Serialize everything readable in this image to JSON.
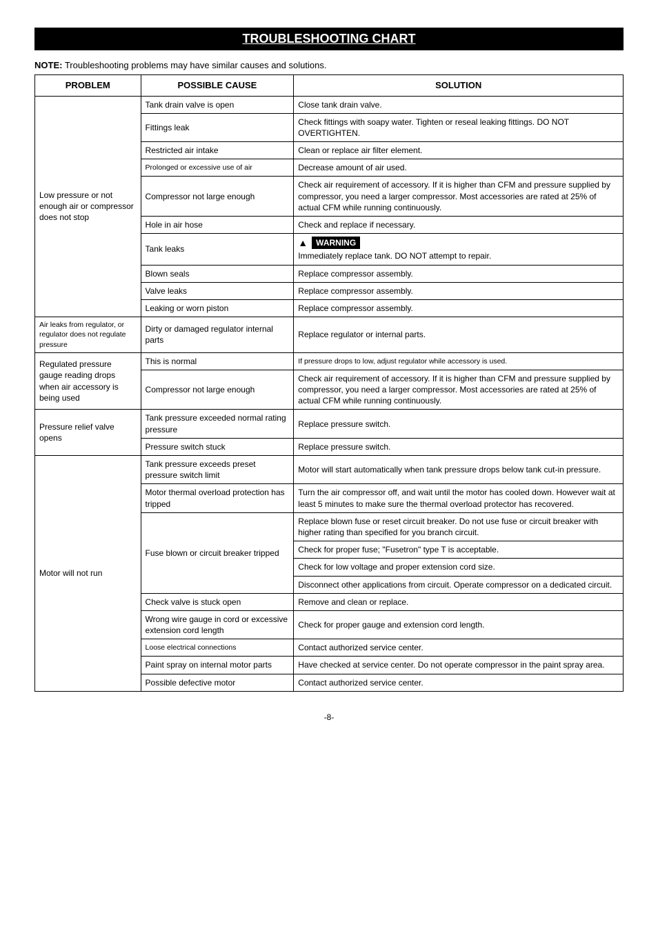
{
  "title": "TROUBLESHOOTING CHART",
  "note_label": "NOTE:",
  "note_text": " Troubleshooting problems may have similar causes and solutions.",
  "headers": {
    "problem": "PROBLEM",
    "cause": "POSSIBLE CAUSE",
    "solution": "SOLUTION"
  },
  "warning_label": "WARNING",
  "page_number": "-8-",
  "groups": [
    {
      "problem": "Low pressure or not enough air or compressor does not stop",
      "rows": [
        {
          "cause": "Tank drain valve is open",
          "solution": "Close tank drain valve."
        },
        {
          "cause": "Fittings leak",
          "solution": "Check fittings with soapy water. Tighten or reseal leaking fittings. DO NOT OVERTIGHTEN."
        },
        {
          "cause": "Restricted air intake",
          "solution": "Clean or replace air filter element."
        },
        {
          "cause": "Prolonged or excessive use of air",
          "solution": "Decrease amount of air used.",
          "cause_small": true
        },
        {
          "cause": "Compressor not large enough",
          "solution": "Check air requirement of accessory. If it is higher than CFM and pressure supplied by compressor, you need a larger compressor. Most accessories are rated at 25% of actual CFM while running continuously."
        },
        {
          "cause": "Hole in air hose",
          "solution": "Check and replace if necessary."
        },
        {
          "cause": "Tank leaks",
          "solution": "Immediately replace tank. DO NOT attempt to repair.",
          "warning": true
        },
        {
          "cause": "Blown seals",
          "solution": "Replace compressor assembly."
        },
        {
          "cause": "Valve leaks",
          "solution": "Replace compressor assembly."
        },
        {
          "cause": "Leaking or worn piston",
          "solution": "Replace compressor assembly."
        }
      ]
    },
    {
      "problem": "Air leaks from regulator, or regulator does not regulate pressure",
      "problem_small": true,
      "rows": [
        {
          "cause": "Dirty or damaged regulator internal parts",
          "solution": "Replace regulator or internal parts."
        }
      ]
    },
    {
      "problem": "Regulated pressure gauge reading drops when air accessory is being used",
      "rows": [
        {
          "cause": "This is normal",
          "solution": "If pressure drops to low, adjust regulator while accessory is used.",
          "sol_small": true
        },
        {
          "cause": "Compressor not large enough",
          "solution": "Check air requirement of accessory. If it is higher than CFM and pressure supplied by compressor, you need a larger compressor. Most accessories are rated at 25% of actual CFM while running continuously."
        }
      ]
    },
    {
      "problem": "Pressure relief valve opens",
      "rows": [
        {
          "cause": "Tank pressure exceeded normal rating pressure",
          "solution": "Replace pressure switch."
        },
        {
          "cause": "Pressure switch stuck",
          "solution": "Replace pressure switch."
        }
      ]
    },
    {
      "problem": "Motor will not run",
      "rows": [
        {
          "cause": "Tank pressure exceeds preset pressure switch limit",
          "solution": "Motor will start automatically when tank pressure drops below tank cut-in pressure."
        },
        {
          "cause": "Motor thermal overload protection has tripped",
          "solution": "Turn the air compressor off, and wait until the motor has cooled down. However wait at least 5 minutes to make sure the thermal overload protector has recovered."
        },
        {
          "cause": "Fuse blown or circuit breaker tripped",
          "cause_rowspan": 4,
          "solution": "Replace blown fuse or reset circuit breaker. Do not use fuse or circuit breaker with higher rating than specified for you branch circuit."
        },
        {
          "solution": "Check for proper fuse; \"Fusetron\" type T is acceptable."
        },
        {
          "solution": "Check for low voltage and proper extension cord size."
        },
        {
          "solution": "Disconnect other applications from circuit. Operate compressor on a dedicated circuit."
        },
        {
          "cause": "Check valve is stuck open",
          "solution": "Remove and clean or replace."
        },
        {
          "cause": "Wrong wire gauge in cord or excessive extension cord length",
          "solution": "Check for proper gauge and extension cord length."
        },
        {
          "cause": "Loose electrical connections",
          "solution": "Contact authorized service center.",
          "cause_small": true
        },
        {
          "cause": "Paint spray on internal motor parts",
          "solution": " Have checked at service center. Do not operate compressor in the paint spray area."
        },
        {
          "cause": "Possible defective motor",
          "solution": "Contact authorized service center."
        }
      ]
    }
  ]
}
